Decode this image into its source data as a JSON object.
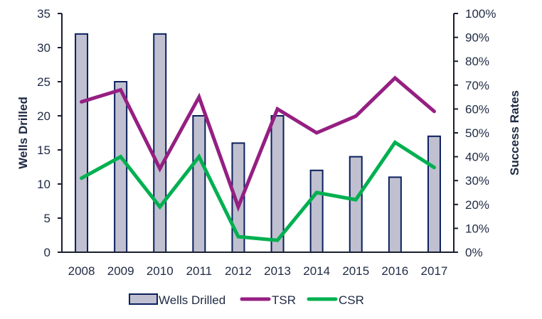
{
  "chart_data": {
    "type": "bar",
    "title": "",
    "categories": [
      "2008",
      "2009",
      "2010",
      "2011",
      "2012",
      "2013",
      "2014",
      "2015",
      "2016",
      "2017"
    ],
    "series": [
      {
        "name": "Wells Drilled",
        "type": "bar",
        "axis": "left",
        "values": [
          32,
          25,
          32,
          20,
          16,
          20,
          12,
          14,
          11,
          17
        ],
        "color": "#c0c0d0",
        "border": "#0a1f5c"
      },
      {
        "name": "TSR",
        "type": "line",
        "axis": "right",
        "values": [
          0.63,
          0.68,
          0.35,
          0.65,
          0.19,
          0.6,
          0.5,
          0.57,
          0.73,
          0.59
        ],
        "color": "#951f82"
      },
      {
        "name": "CSR",
        "type": "line",
        "axis": "right",
        "values": [
          0.31,
          0.4,
          0.19,
          0.4,
          0.065,
          0.05,
          0.25,
          0.22,
          0.46,
          0.355
        ],
        "color": "#00b050"
      }
    ],
    "xlabel": "",
    "ylabel": "Wells Drilled",
    "ylim": [
      0,
      35
    ],
    "yticks": [
      "0",
      "5",
      "10",
      "15",
      "20",
      "25",
      "30",
      "35"
    ],
    "y2label": "Success Rates",
    "y2lim": [
      0,
      1
    ],
    "y2ticks": [
      "0%",
      "10%",
      "20%",
      "30%",
      "40%",
      "50%",
      "60%",
      "70%",
      "80%",
      "90%",
      "100%"
    ],
    "grid": false,
    "legend": {
      "position": "bottom",
      "entries": [
        "Wells Drilled",
        "TSR",
        "CSR"
      ]
    }
  }
}
